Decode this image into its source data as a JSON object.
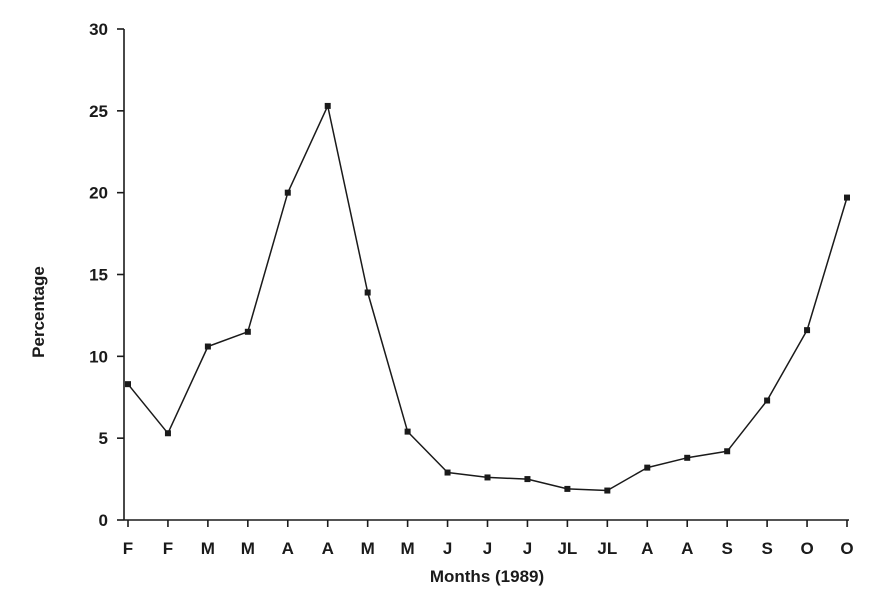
{
  "chart_data": {
    "type": "line",
    "title": "",
    "xlabel": "Months (1989)",
    "ylabel": "Percentage",
    "categories": [
      "F",
      "F",
      "M",
      "M",
      "A",
      "A",
      "M",
      "M",
      "J",
      "J",
      "J",
      "JL",
      "JL",
      "A",
      "A",
      "S",
      "S",
      "O",
      "O"
    ],
    "series": [
      {
        "values": [
          8.3,
          5.3,
          10.6,
          11.5,
          20.0,
          25.3,
          13.9,
          5.4,
          2.9,
          2.6,
          2.5,
          1.9,
          1.8,
          3.2,
          3.8,
          4.2,
          7.3,
          11.6,
          19.7
        ]
      }
    ],
    "ylim": [
      0,
      30
    ],
    "yticks": [
      0,
      5,
      10,
      15,
      20,
      25,
      30
    ],
    "grid": false,
    "legend": "none",
    "color": "#1a1a1a"
  }
}
